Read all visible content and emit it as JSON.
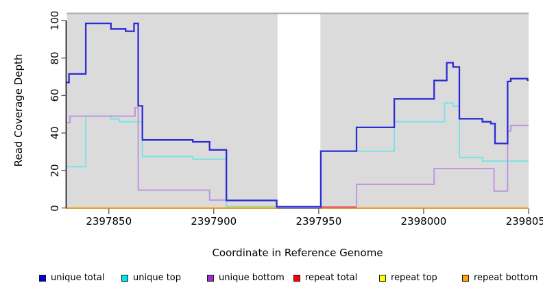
{
  "chart_data": {
    "type": "line",
    "style": "step-after",
    "title": "",
    "xlabel": "Coordinate in Reference Genome",
    "ylabel": "Read Coverage Depth",
    "xlim": [
      2397830,
      2398050
    ],
    "ylim": [
      0,
      104
    ],
    "x_ticks": [
      2397850,
      2397900,
      2397950,
      2398000,
      2398050
    ],
    "y_ticks": [
      0,
      20,
      40,
      60,
      80,
      100
    ],
    "grid": false,
    "legend_position": "bottom",
    "panel_bg": "#DBDBDB",
    "panel_top_border": "#A9A9A9",
    "no_data_region": {
      "x_from": 2397930.4,
      "x_to": 2397950.8,
      "fill": "#FFFFFF"
    },
    "series": [
      {
        "name": "unique total",
        "line_color": "#2B2BD5",
        "legend_color": "#0000E0",
        "width": 2.3,
        "segments": [
          [
            [
              2397830,
              67
            ],
            [
              2397831,
              71.5
            ],
            [
              2397839,
              98.5
            ],
            [
              2397851,
              95.5
            ],
            [
              2397858,
              94.3
            ],
            [
              2397862,
              98.5
            ],
            [
              2397864,
              54.5
            ],
            [
              2397866,
              36.3
            ],
            [
              2397890,
              35.3
            ],
            [
              2397898,
              31
            ],
            [
              2397906,
              4
            ],
            [
              2397930,
              0.6
            ],
            [
              2397951,
              30.3
            ],
            [
              2397968,
              43
            ],
            [
              2397986,
              58.2
            ],
            [
              2398005,
              68
            ],
            [
              2398011,
              77.5
            ],
            [
              2398014,
              75.3
            ],
            [
              2398017,
              47.6
            ],
            [
              2398028,
              46
            ],
            [
              2398032,
              45
            ],
            [
              2398034,
              34.4
            ],
            [
              2398040,
              67.5
            ],
            [
              2398041.5,
              69
            ],
            [
              2398049.5,
              68.2
            ],
            [
              2398050,
              68.2
            ]
          ]
        ]
      },
      {
        "name": "unique top",
        "line_color": "#72E3E8",
        "legend_color": "#00E5EE",
        "width": 1.8,
        "segments": [
          [
            [
              2397830,
              22
            ],
            [
              2397839,
              49
            ],
            [
              2397851,
              47.5
            ],
            [
              2397855,
              46
            ],
            [
              2397866,
              27.5
            ],
            [
              2397890,
              26
            ],
            [
              2397906,
              0.8
            ],
            [
              2397951,
              30.3
            ],
            [
              2397986,
              46
            ],
            [
              2398010,
              56
            ],
            [
              2398014,
              54.3
            ],
            [
              2398017,
              27
            ],
            [
              2398028,
              25
            ],
            [
              2398050,
              25
            ]
          ]
        ]
      },
      {
        "name": "unique bottom",
        "line_color": "#BD8FDC",
        "legend_color": "#9932CC",
        "width": 1.8,
        "segments": [
          [
            [
              2397830,
              45.5
            ],
            [
              2397831.5,
              49
            ],
            [
              2397862.5,
              53.5
            ],
            [
              2397864,
              9.5
            ],
            [
              2397898,
              4.2
            ],
            [
              2397930,
              0.7
            ],
            [
              2397951,
              0.7
            ]
          ],
          [
            [
              2397968,
              0
            ],
            [
              2397968,
              12.6
            ],
            [
              2398005,
              21
            ],
            [
              2398033.5,
              9
            ],
            [
              2398040,
              41
            ],
            [
              2398041.5,
              44
            ],
            [
              2398050,
              44
            ]
          ]
        ]
      },
      {
        "name": "repeat total",
        "line_color": "#FF0000",
        "legend_color": "#FF0000",
        "width": 2,
        "segments": [
          [
            [
              2397830,
              0
            ],
            [
              2397930,
              0
            ]
          ],
          [
            [
              2397951,
              0
            ],
            [
              2398050,
              0
            ]
          ]
        ]
      },
      {
        "name": "repeat top",
        "line_color": "#FFFF00",
        "legend_color": "#FFFF00",
        "width": 2,
        "segments": [
          [
            [
              2397830,
              0
            ],
            [
              2397930,
              0
            ]
          ],
          [
            [
              2397951,
              0
            ],
            [
              2398050,
              0
            ]
          ]
        ]
      },
      {
        "name": "repeat bottom",
        "line_color": "#FFA500",
        "legend_color": "#FFA500",
        "width": 2,
        "segments": [
          [
            [
              2397830,
              0
            ],
            [
              2397930,
              0
            ]
          ],
          [
            [
              2397951,
              0
            ],
            [
              2398050,
              0
            ]
          ]
        ]
      }
    ],
    "overdraw_artifacts": [
      {
        "name": "green seam",
        "color": "#9CDCA4",
        "width": 1.6,
        "y": 0.8,
        "x_from": 2397906,
        "x_to": 2397930
      },
      {
        "name": "crimson seam",
        "color": "#E0506E",
        "width": 2,
        "y": 0.45,
        "x_from": 2397950.5,
        "x_to": 2397968
      }
    ]
  }
}
